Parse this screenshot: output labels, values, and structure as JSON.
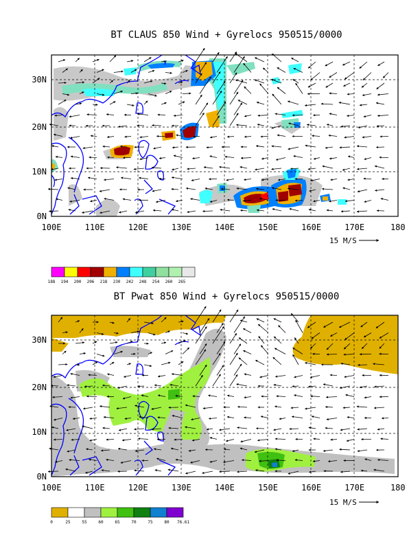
{
  "panels": [
    {
      "id": "claus",
      "title": "BT CLAUS 850 Wind + Gyrelocs 950515/0000",
      "field": "brightness-temperature",
      "lat_ticks": [
        "0N",
        "10N",
        "20N",
        "30N"
      ],
      "lon_ticks": [
        "100E",
        "110E",
        "120E",
        "130E",
        "140E",
        "150E",
        "160E",
        "170E",
        "180"
      ],
      "vector_key": "15 M/S",
      "legend": {
        "labels": [
          "188",
          "194",
          "200",
          "206",
          "218",
          "230",
          "242",
          "248",
          "254",
          "260",
          "265"
        ],
        "colors": [
          "#ff00ff",
          "#ffff00",
          "#ff0000",
          "#a00000",
          "#f0b000",
          "#0080ff",
          "#40ffff",
          "#40d0a0",
          "#90e0a0",
          "#b0f0b0",
          "#e8e8e8"
        ]
      }
    },
    {
      "id": "pwat",
      "title": "BT Pwat 850 Wind + Gyrelocs 950515/0000",
      "field": "precipitable-water",
      "lat_ticks": [
        "0N",
        "10N",
        "20N",
        "30N"
      ],
      "lon_ticks": [
        "100E",
        "110E",
        "120E",
        "130E",
        "140E",
        "150E",
        "160E",
        "170E",
        "180"
      ],
      "vector_key": "15 M/S",
      "legend": {
        "labels": [
          "0",
          "25",
          "55",
          "60",
          "65",
          "70",
          "75",
          "80",
          "76.61"
        ],
        "colors": [
          "#e0b000",
          "#ffffff",
          "#c0c0c0",
          "#a0f040",
          "#40c010",
          "#108010",
          "#1080d0",
          "#8000d0"
        ]
      }
    }
  ],
  "colors": {
    "coast": "#0000ff",
    "grid": "#000000",
    "sea": "#ffffff"
  }
}
